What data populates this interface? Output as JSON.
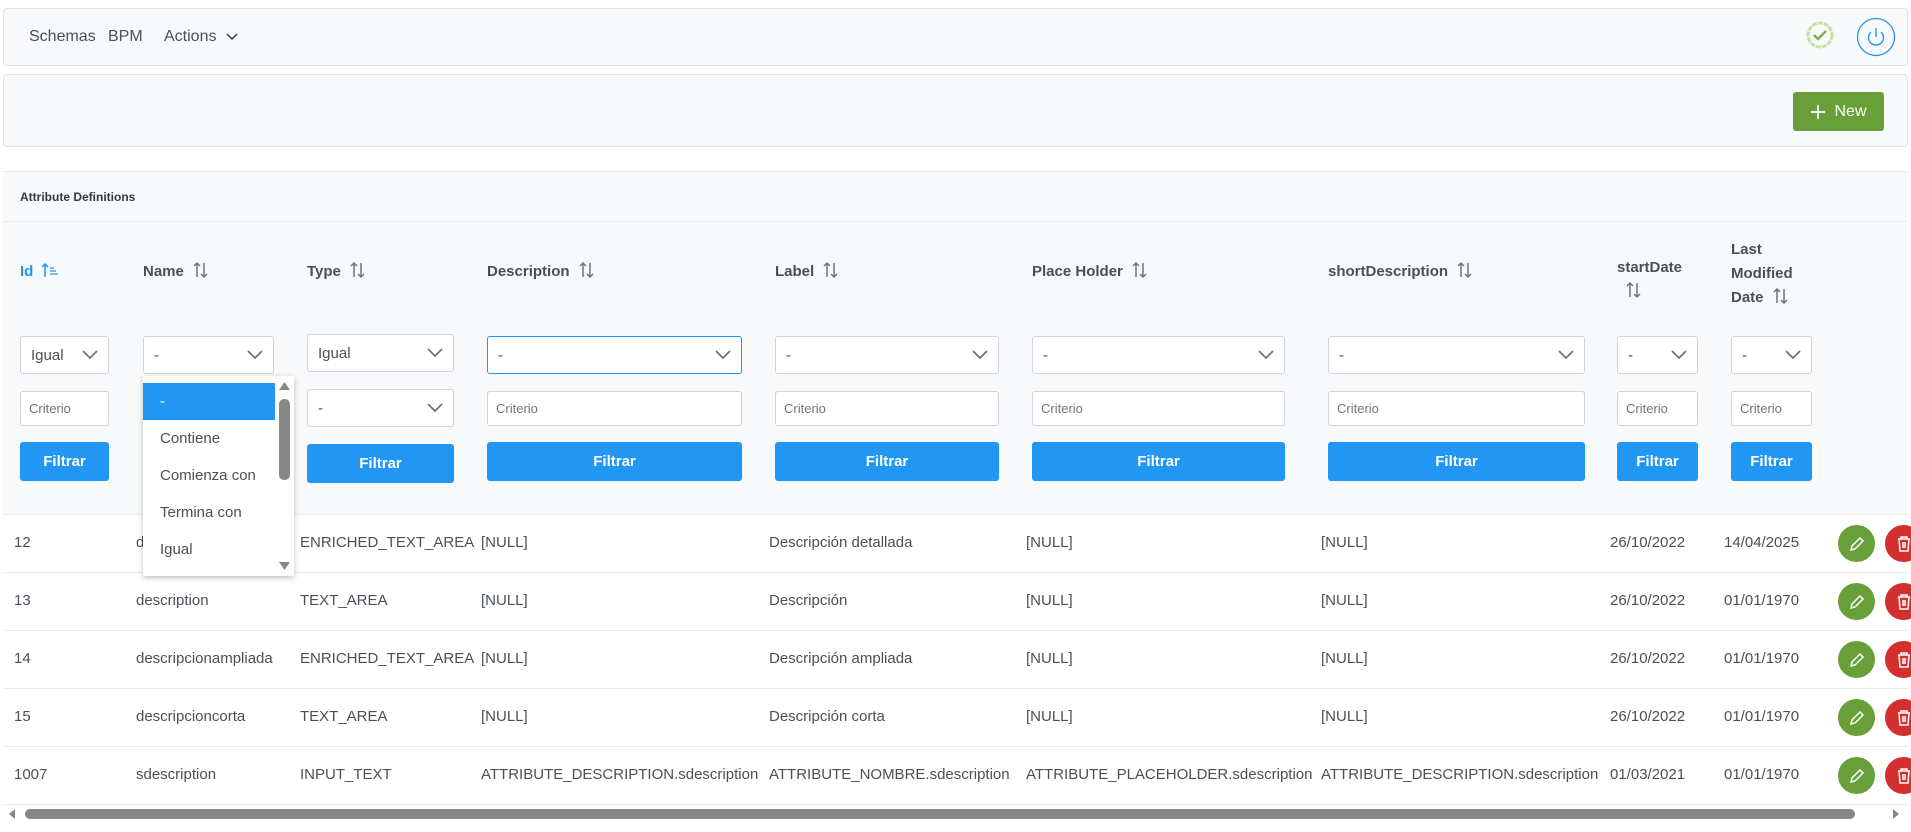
{
  "navbar": {
    "items": [
      "Schemas",
      "BPM",
      "Actions"
    ],
    "status_icon": "check-badge-icon",
    "logout_icon": "power-icon"
  },
  "toolbar": {
    "new_label": "New"
  },
  "table": {
    "title": "Attribute Definitions",
    "columns": [
      {
        "label": "Id",
        "sorted": "asc"
      },
      {
        "label": "Name"
      },
      {
        "label": "Type"
      },
      {
        "label": "Description"
      },
      {
        "label": "Label"
      },
      {
        "label": "Place Holder"
      },
      {
        "label": "shortDescription"
      },
      {
        "label": "startDate"
      },
      {
        "label": "Last Modified Date"
      }
    ],
    "filters": [
      {
        "mode": "Igual",
        "criterio": "Criterio"
      },
      {
        "mode": "-"
      },
      {
        "mode": "Igual",
        "mode2": "-"
      },
      {
        "mode": "-",
        "criterio": "Criterio"
      },
      {
        "mode": "-",
        "criterio": "Criterio"
      },
      {
        "mode": "-",
        "criterio": "Criterio"
      },
      {
        "mode": "-",
        "criterio": "Criterio"
      },
      {
        "mode": "-",
        "criterio": "Criterio"
      },
      {
        "mode": "-",
        "criterio": "Criterio"
      }
    ],
    "filter_button": "Filtrar",
    "dropdown_options": [
      "-",
      "Contiene",
      "Comienza con",
      "Termina con",
      "Igual"
    ],
    "rows": [
      {
        "id": "12",
        "name": "d",
        "type": "ENRICHED_TEXT_AREA",
        "description": "[NULL]",
        "label": "Descripción detallada",
        "placeholder": "[NULL]",
        "short": "[NULL]",
        "start": "26/10/2022",
        "modified": "14/04/2025"
      },
      {
        "id": "13",
        "name": "description",
        "type": "TEXT_AREA",
        "description": "[NULL]",
        "label": "Descripción",
        "placeholder": "[NULL]",
        "short": "[NULL]",
        "start": "26/10/2022",
        "modified": "01/01/1970"
      },
      {
        "id": "14",
        "name": "descripcionampliada",
        "type": "ENRICHED_TEXT_AREA",
        "description": "[NULL]",
        "label": "Descripción ampliada",
        "placeholder": "[NULL]",
        "short": "[NULL]",
        "start": "26/10/2022",
        "modified": "01/01/1970"
      },
      {
        "id": "15",
        "name": "descripcioncorta",
        "type": "TEXT_AREA",
        "description": "[NULL]",
        "label": "Descripción corta",
        "placeholder": "[NULL]",
        "short": "[NULL]",
        "start": "26/10/2022",
        "modified": "01/01/1970"
      },
      {
        "id": "1007",
        "name": "sdescription",
        "type": "INPUT_TEXT",
        "description": "ATTRIBUTE_DESCRIPTION.sdescription",
        "label": "ATTRIBUTE_NOMBRE.sdescription",
        "placeholder": "ATTRIBUTE_PLACEHOLDER.sdescription",
        "short": "ATTRIBUTE_DESCRIPTION.sdescription",
        "start": "01/03/2021",
        "modified": "01/01/1970"
      }
    ]
  },
  "colors": {
    "primary": "#2196f3",
    "success": "#689f38",
    "danger": "#d32f2f"
  }
}
